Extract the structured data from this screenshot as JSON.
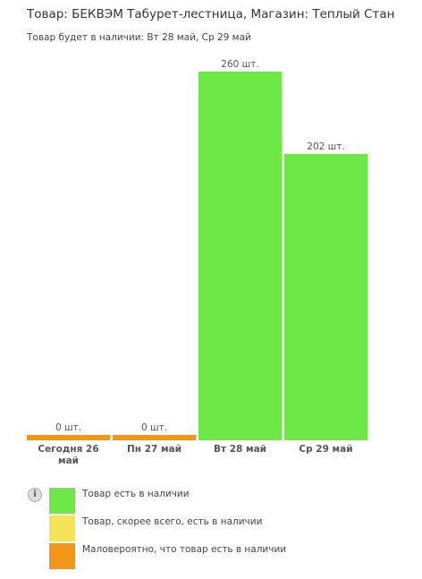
{
  "chart_data": {
    "type": "bar",
    "title": "Товар: БЕКВЭМ Табурет-лестница, Магазин: Теплый Стан",
    "subtitle": "Товар будет в наличии: Вт 28 май, Ср 29 май",
    "categories": [
      "Сегодня 26 май",
      "Пн 27 май",
      "Вт 28 май",
      "Ср 29 май"
    ],
    "values": [
      0,
      0,
      260,
      202
    ],
    "value_labels": [
      "0 шт.",
      "0 шт.",
      "260 шт.",
      "202 шт."
    ],
    "colors": [
      "#f39519",
      "#f39519",
      "#6ee846",
      "#6ee846"
    ],
    "info_icon": "i",
    "legend": [
      {
        "name": "Товар есть в наличии",
        "color": "#6ee846"
      },
      {
        "name": "Товар, скорее всего, есть в наличии",
        "color": "#f5e35a"
      },
      {
        "name": "Маловероятно, что товар есть в наличии",
        "color": "#f39519"
      }
    ]
  }
}
